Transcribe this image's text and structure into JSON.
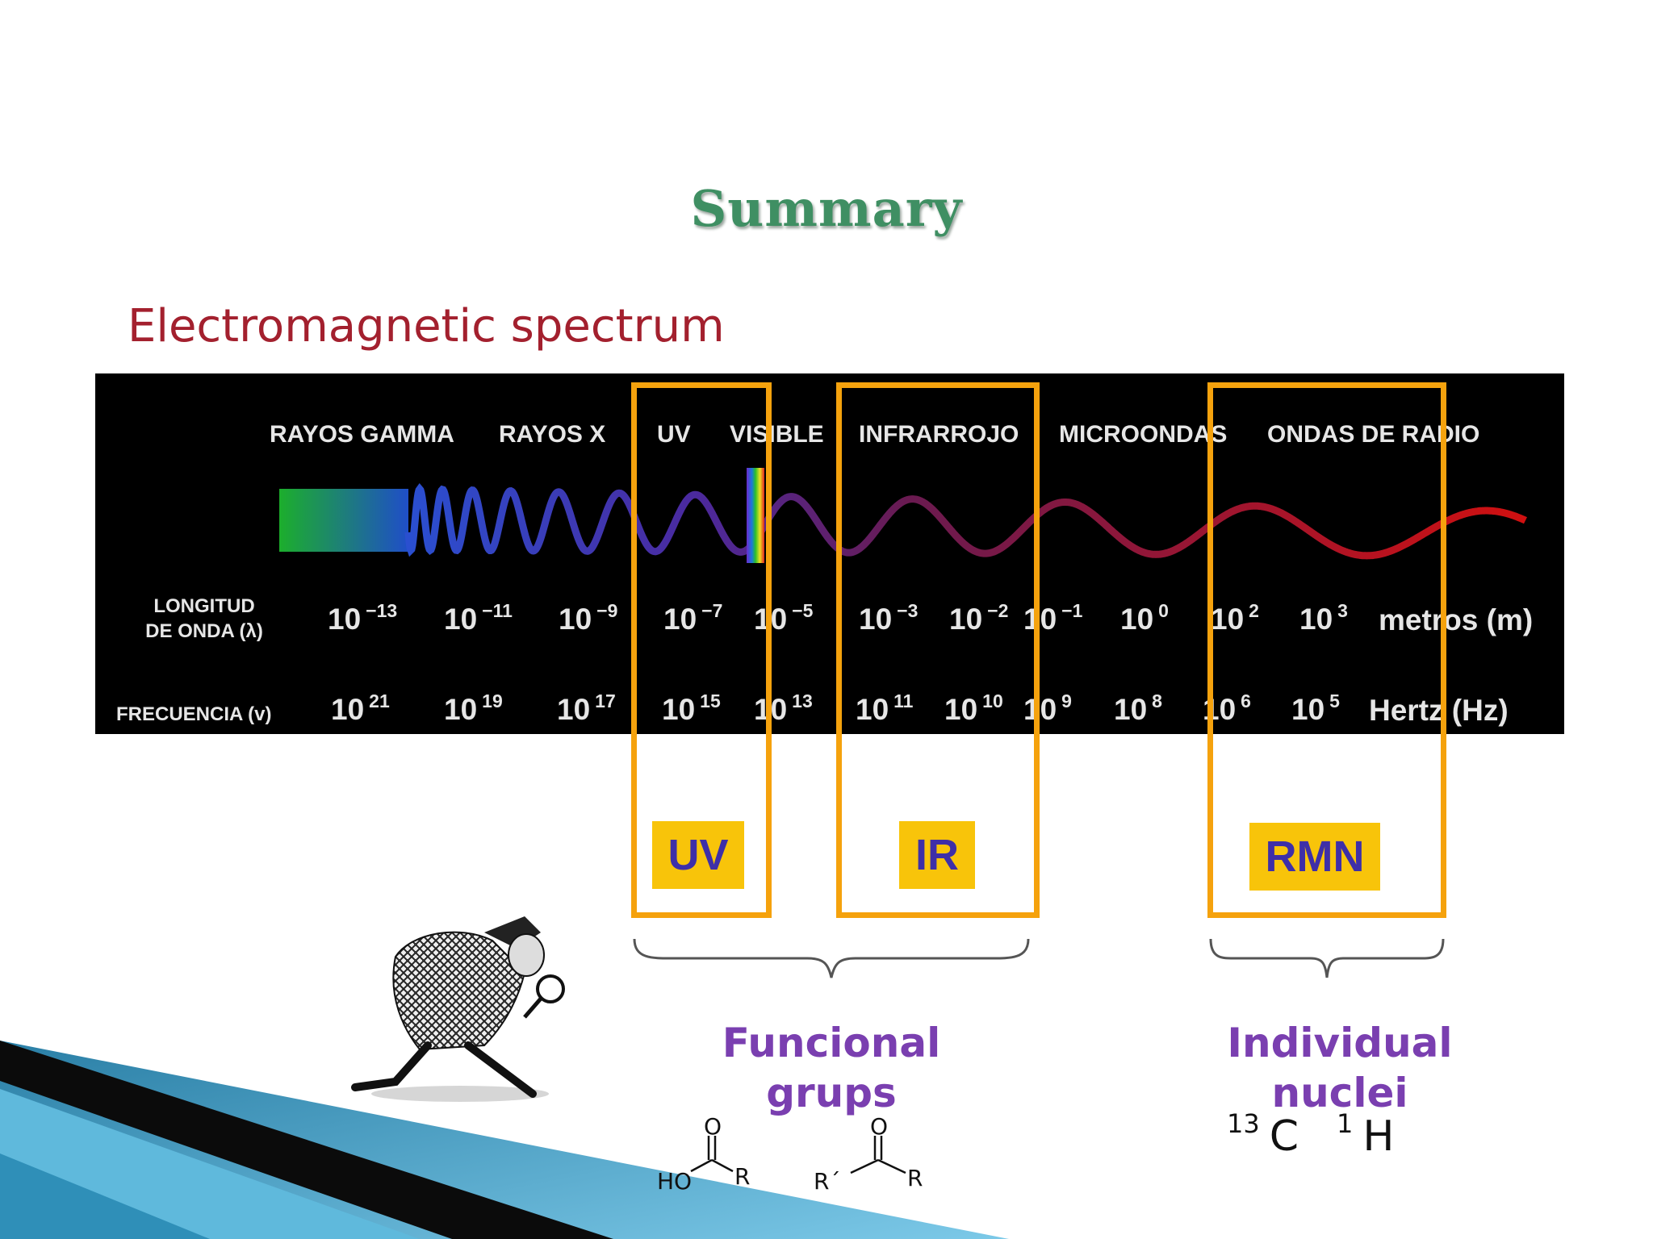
{
  "slide": {
    "title": "Summary",
    "subtitle": "Electromagnetic spectrum"
  },
  "spectrum": {
    "bands": [
      "RAYOS GAMMA",
      "RAYOS X",
      "UV",
      "VISIBLE",
      "INFRARROJO",
      "MICROONDAS",
      "ONDAS DE RADIO"
    ],
    "wavelength_label_line1": "LONGITUD",
    "wavelength_label_line2": "DE ONDA (λ)",
    "wavelength_base": "10",
    "wavelength_exponents": [
      "−13",
      "−11",
      "−9",
      "−7",
      "−5",
      "−3",
      "−2",
      "−1",
      "0",
      "2",
      "3"
    ],
    "wavelength_unit": "metros (m)",
    "frequency_label": "FRECUENCIA (v)",
    "frequency_base": "10",
    "frequency_exponents": [
      "21",
      "19",
      "17",
      "15",
      "13",
      "11",
      "10",
      "9",
      "8",
      "6",
      "5"
    ],
    "frequency_unit": "Hertz (Hz)"
  },
  "techniques": {
    "uv": "UV",
    "ir": "IR",
    "rmn": "RMN"
  },
  "groups": {
    "functional_line1": "Funcional",
    "functional_line2": "grups",
    "nuclei_line1": "Individual",
    "nuclei_line2": "nuclei"
  },
  "nuclei": [
    {
      "mass": "13",
      "symbol": "C"
    },
    {
      "mass": "1",
      "symbol": "H"
    }
  ],
  "structures": {
    "acid": {
      "oxygen": "O",
      "left": "HO",
      "right": "R"
    },
    "ketone": {
      "oxygen": "O",
      "left": "R´",
      "right": "R"
    }
  },
  "colors": {
    "title": "#3f8f63",
    "subtitle": "#a3202e",
    "highlight_box": "#f5a20d",
    "technique_fill": "#f8c40a",
    "technique_text": "#3e2fa8",
    "group_text": "#7a3fb0"
  }
}
